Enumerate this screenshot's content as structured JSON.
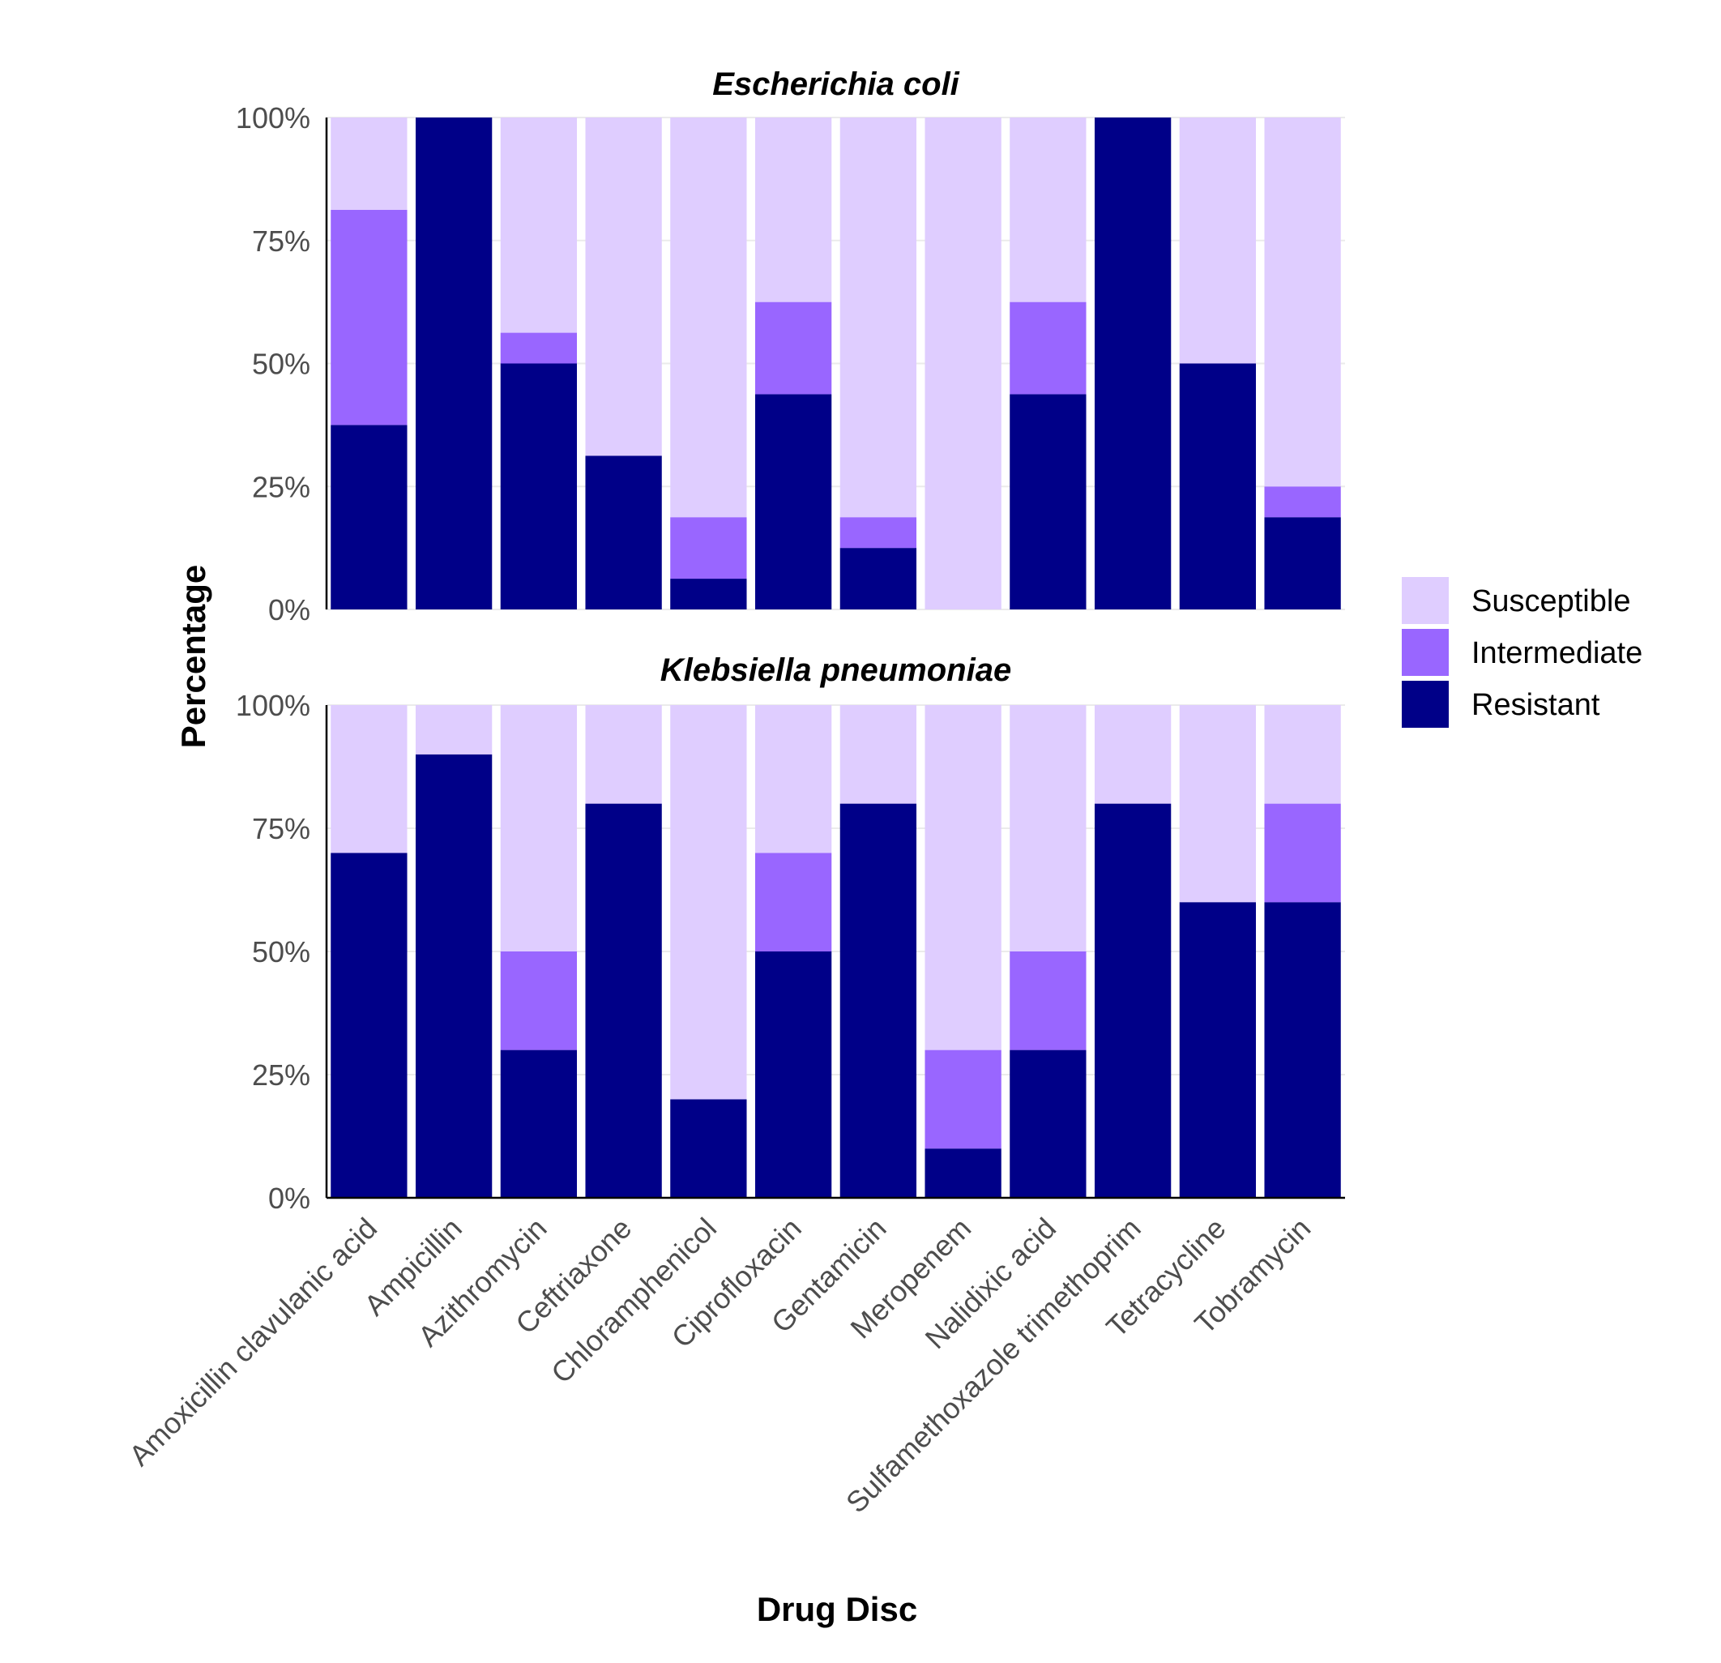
{
  "chart_data": {
    "type": "bar",
    "stacked": true,
    "xlabel": "Drug Disc",
    "ylabel": "Percentage",
    "ylim": [
      0,
      100
    ],
    "yticks": [
      "0%",
      "25%",
      "50%",
      "75%",
      "100%"
    ],
    "categories": [
      "Amoxicillin clavulanic acid",
      "Ampicillin",
      "Azithromycin",
      "Ceftriaxone",
      "Chloramphenicol",
      "Ciprofloxacin",
      "Gentamicin",
      "Meropenem",
      "Nalidixic acid",
      "Sulfamethoxazole trimethoprim",
      "Tetracycline",
      "Tobramycin"
    ],
    "legend": {
      "position": "right",
      "entries": [
        {
          "name": "Susceptible",
          "color": "#dfcdff"
        },
        {
          "name": "Intermediate",
          "color": "#9966ff"
        },
        {
          "name": "Resistant",
          "color": "#000088"
        }
      ]
    },
    "panels": [
      {
        "title": "Escherichia coli",
        "series": [
          {
            "name": "Resistant",
            "values": [
              37.5,
              100,
              50,
              31.25,
              6.25,
              43.75,
              12.5,
              0,
              43.75,
              100,
              50,
              18.75
            ]
          },
          {
            "name": "Intermediate",
            "values": [
              43.75,
              0,
              6.25,
              0,
              12.5,
              18.75,
              6.25,
              0,
              18.75,
              0,
              0,
              6.25
            ]
          },
          {
            "name": "Susceptible",
            "values": [
              18.75,
              0,
              43.75,
              68.75,
              81.25,
              37.5,
              81.25,
              100,
              37.5,
              0,
              50,
              75
            ]
          }
        ]
      },
      {
        "title": "Klebsiella pneumoniae",
        "series": [
          {
            "name": "Resistant",
            "values": [
              70,
              90,
              30,
              80,
              20,
              50,
              80,
              10,
              30,
              80,
              60,
              60
            ]
          },
          {
            "name": "Intermediate",
            "values": [
              0,
              0,
              20,
              0,
              0,
              20,
              0,
              20,
              20,
              0,
              0,
              20
            ]
          },
          {
            "name": "Susceptible",
            "values": [
              30,
              10,
              50,
              20,
              80,
              30,
              20,
              70,
              50,
              20,
              40,
              20
            ]
          }
        ]
      }
    ]
  }
}
